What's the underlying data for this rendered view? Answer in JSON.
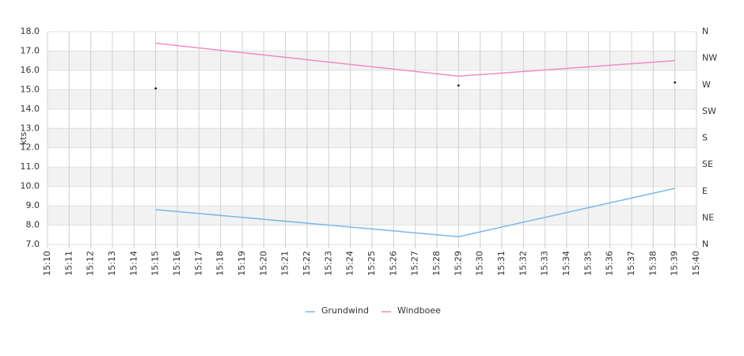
{
  "chart_data": {
    "type": "line",
    "y_label": "kts",
    "categories": [
      "15:10",
      "15:11",
      "15:12",
      "15:13",
      "15:14",
      "15:15",
      "15:16",
      "15:17",
      "15:18",
      "15:19",
      "15:20",
      "15:21",
      "15:22",
      "15:23",
      "15:24",
      "15:25",
      "15:26",
      "15:27",
      "15:28",
      "15:29",
      "15:30",
      "15:31",
      "15:32",
      "15:33",
      "15:34",
      "15:35",
      "15:36",
      "15:37",
      "15:38",
      "15:39",
      "15:40"
    ],
    "series": [
      {
        "name": "Grundwind",
        "color": "#7cb5ec",
        "x": [
          "15:15",
          "15:29",
          "15:39"
        ],
        "values": [
          8.8,
          7.4,
          9.9
        ]
      },
      {
        "name": "Windboee",
        "color": "#f08cc0",
        "x": [
          "15:15",
          "15:29",
          "15:39"
        ],
        "values": [
          17.4,
          15.7,
          16.5
        ]
      }
    ],
    "direction": {
      "color": "#000000",
      "axis": "y2",
      "x": [
        "15:15",
        "15:29",
        "15:39"
      ],
      "values": [
        264,
        269,
        274
      ]
    },
    "ylim": [
      7,
      18
    ],
    "yticks": [
      {
        "value": 7,
        "label": "7.0"
      },
      {
        "value": 8,
        "label": "8.0"
      },
      {
        "value": 9,
        "label": "9.0"
      },
      {
        "value": 10,
        "label": "10.0"
      },
      {
        "value": 11,
        "label": "11.0"
      },
      {
        "value": 12,
        "label": "12.0"
      },
      {
        "value": 13,
        "label": "13.0"
      },
      {
        "value": 14,
        "label": "14.0"
      },
      {
        "value": 15,
        "label": "15.0"
      },
      {
        "value": 16,
        "label": "16.0"
      },
      {
        "value": 17,
        "label": "17.0"
      },
      {
        "value": 18,
        "label": "18.0"
      }
    ],
    "y2lim": [
      0,
      360
    ],
    "y2ticks": [
      {
        "value": 0,
        "label": "N"
      },
      {
        "value": 45,
        "label": "NE"
      },
      {
        "value": 90,
        "label": "E"
      },
      {
        "value": 135,
        "label": "SE"
      },
      {
        "value": 180,
        "label": "S"
      },
      {
        "value": 225,
        "label": "SW"
      },
      {
        "value": 270,
        "label": "W"
      },
      {
        "value": 315,
        "label": "NW"
      },
      {
        "value": 360,
        "label": "N"
      }
    ],
    "grid": true,
    "legend": "bottom"
  }
}
